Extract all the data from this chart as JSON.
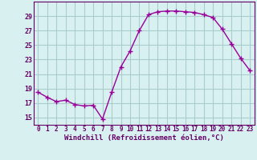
{
  "x": [
    0,
    1,
    2,
    3,
    4,
    5,
    6,
    7,
    8,
    9,
    10,
    11,
    12,
    13,
    14,
    15,
    16,
    17,
    18,
    19,
    20,
    21,
    22,
    23
  ],
  "y": [
    18.5,
    17.8,
    17.2,
    17.4,
    16.8,
    16.6,
    16.7,
    14.8,
    18.5,
    22.0,
    24.2,
    27.0,
    29.2,
    29.6,
    29.7,
    29.7,
    29.6,
    29.5,
    29.2,
    28.8,
    27.2,
    25.2,
    23.2,
    21.5
  ],
  "line_color": "#990099",
  "marker": "+",
  "marker_size": 4,
  "bg_color": "#d8f0f0",
  "grid_color": "#aacccc",
  "xlabel": "Windchill (Refroidissement éolien,°C)",
  "xlabel_color": "#660066",
  "tick_color": "#660066",
  "axis_color": "#660066",
  "ylim": [
    14,
    31
  ],
  "yticks": [
    15,
    17,
    19,
    21,
    23,
    25,
    27,
    29
  ],
  "xlim": [
    -0.5,
    23.5
  ],
  "xticks": [
    0,
    1,
    2,
    3,
    4,
    5,
    6,
    7,
    8,
    9,
    10,
    11,
    12,
    13,
    14,
    15,
    16,
    17,
    18,
    19,
    20,
    21,
    22,
    23
  ],
  "line_width": 1.0
}
